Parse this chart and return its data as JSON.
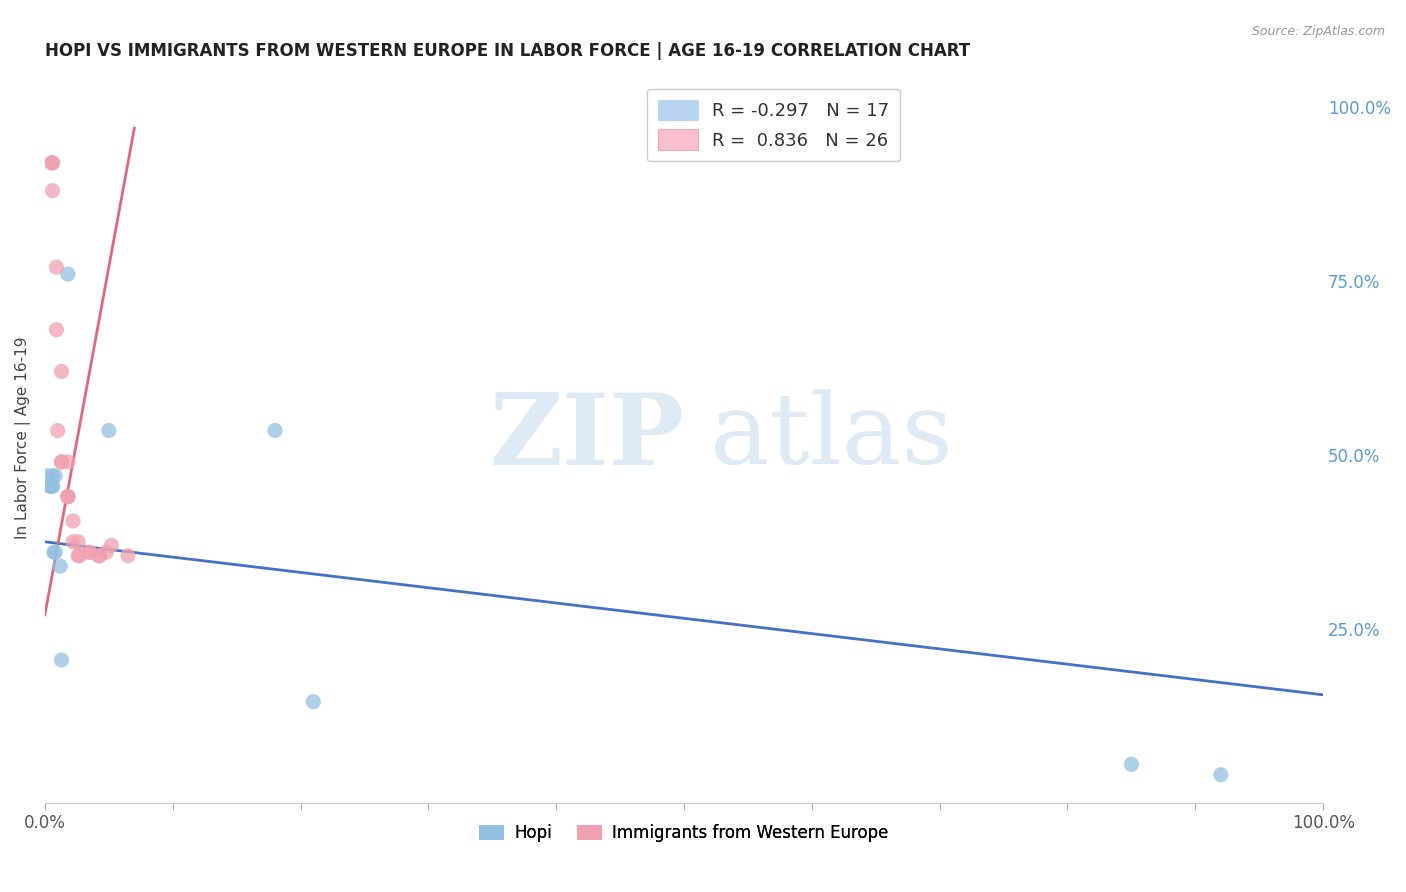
{
  "title": "HOPI VS IMMIGRANTS FROM WESTERN EUROPE IN LABOR FORCE | AGE 16-19 CORRELATION CHART",
  "source": "Source: ZipAtlas.com",
  "ylabel": "In Labor Force | Age 16-19",
  "right_yticks": [
    "25.0%",
    "50.0%",
    "75.0%",
    "100.0%"
  ],
  "right_ytick_vals": [
    0.25,
    0.5,
    0.75,
    1.0
  ],
  "hopi_scatter_x": [
    0.002,
    0.004,
    0.004,
    0.006,
    0.006,
    0.006,
    0.007,
    0.008,
    0.008,
    0.012,
    0.013,
    0.018,
    0.05,
    0.18,
    0.21,
    0.85,
    0.92
  ],
  "hopi_scatter_y": [
    0.47,
    0.455,
    0.455,
    0.455,
    0.455,
    0.47,
    0.36,
    0.36,
    0.47,
    0.34,
    0.205,
    0.76,
    0.535,
    0.535,
    0.145,
    0.055,
    0.04
  ],
  "immig_scatter_x": [
    0.005,
    0.006,
    0.006,
    0.006,
    0.009,
    0.009,
    0.01,
    0.013,
    0.013,
    0.013,
    0.018,
    0.018,
    0.018,
    0.018,
    0.022,
    0.022,
    0.026,
    0.026,
    0.027,
    0.035,
    0.035,
    0.042,
    0.043,
    0.048,
    0.052,
    0.065
  ],
  "immig_scatter_y": [
    0.92,
    0.92,
    0.92,
    0.88,
    0.77,
    0.68,
    0.535,
    0.62,
    0.49,
    0.49,
    0.49,
    0.44,
    0.44,
    0.44,
    0.405,
    0.375,
    0.375,
    0.355,
    0.355,
    0.36,
    0.36,
    0.355,
    0.355,
    0.36,
    0.37,
    0.355
  ],
  "hopi_color": "#92c0e0",
  "immig_color": "#f0a0b0",
  "hopi_line_color": "#4472c4",
  "immig_line_color": "#e06878",
  "hopi_line_x": [
    0.0,
    1.0
  ],
  "hopi_line_y": [
    0.375,
    0.155
  ],
  "immig_line_x": [
    0.0,
    0.07
  ],
  "immig_line_y": [
    0.27,
    0.97
  ],
  "background_color": "#ffffff",
  "xlim": [
    0.0,
    1.0
  ],
  "ylim": [
    0.0,
    1.05
  ],
  "xtick_positions": [
    0.0,
    0.1,
    0.2,
    0.3,
    0.4,
    0.5,
    0.6,
    0.7,
    0.8,
    0.9,
    1.0
  ],
  "legend_hopi_label": "R = -0.297   N = 17",
  "legend_immig_label": "R =  0.836   N = 26",
  "legend_hopi_color": "#b8d4f0",
  "legend_immig_color": "#f8c0cc",
  "watermark_zip": "ZIP",
  "watermark_atlas": "atlas"
}
